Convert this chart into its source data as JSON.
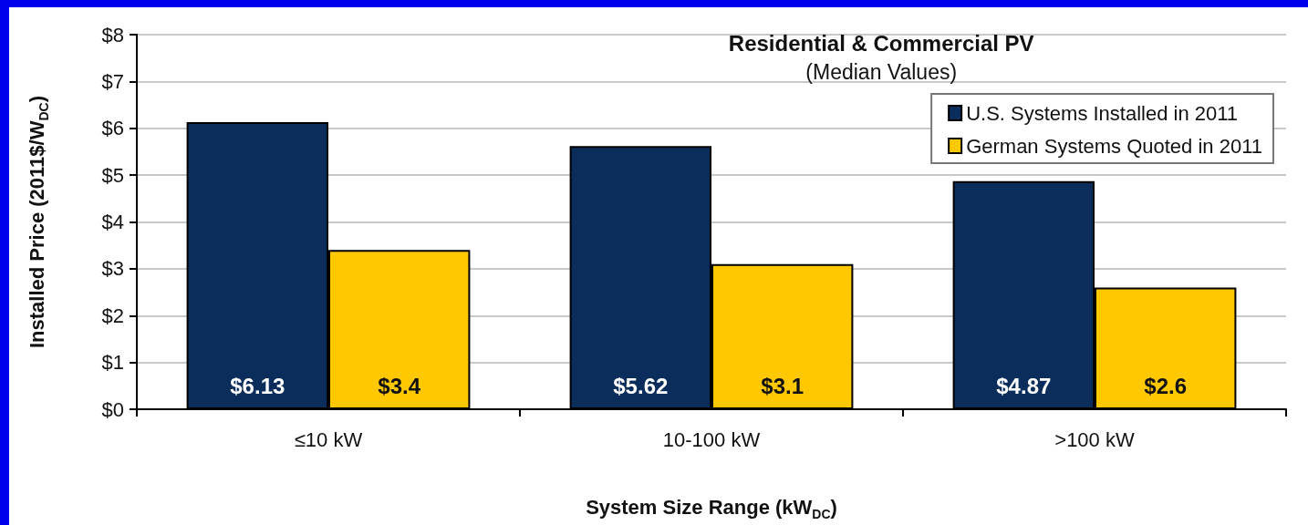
{
  "chart_data": {
    "type": "bar",
    "title": "Residential & Commercial PV",
    "subtitle": "(Median Values)",
    "xlabel": "System Size Range (kW$_{DC}$)",
    "ylabel": "Installed Price (2011$/W$_{DC}$)",
    "categories": [
      "≤10 kW",
      "10-100 kW",
      ">100 kW"
    ],
    "series": [
      {
        "name": "U.S. Systems Installed in 2011",
        "color": "#0b2d5b",
        "values": [
          6.13,
          5.62,
          4.87
        ],
        "value_labels": [
          "$6.13",
          "$5.62",
          "$4.87"
        ]
      },
      {
        "name": "German Systems Quoted in 2011",
        "color": "#ffc800",
        "values": [
          3.4,
          3.1,
          2.6
        ],
        "value_labels": [
          "$3.4",
          "$3.1",
          "$2.6"
        ]
      }
    ],
    "ylim": [
      0,
      8
    ],
    "yticks": [
      {
        "value": 0,
        "label": "$0"
      },
      {
        "value": 1,
        "label": "$1"
      },
      {
        "value": 2,
        "label": "$2"
      },
      {
        "value": 3,
        "label": "$3"
      },
      {
        "value": 4,
        "label": "$4"
      },
      {
        "value": 5,
        "label": "$5"
      },
      {
        "value": 6,
        "label": "$6"
      },
      {
        "value": 7,
        "label": "$7"
      },
      {
        "value": 8,
        "label": "$8"
      }
    ],
    "grid": "y",
    "legend": "top right"
  }
}
